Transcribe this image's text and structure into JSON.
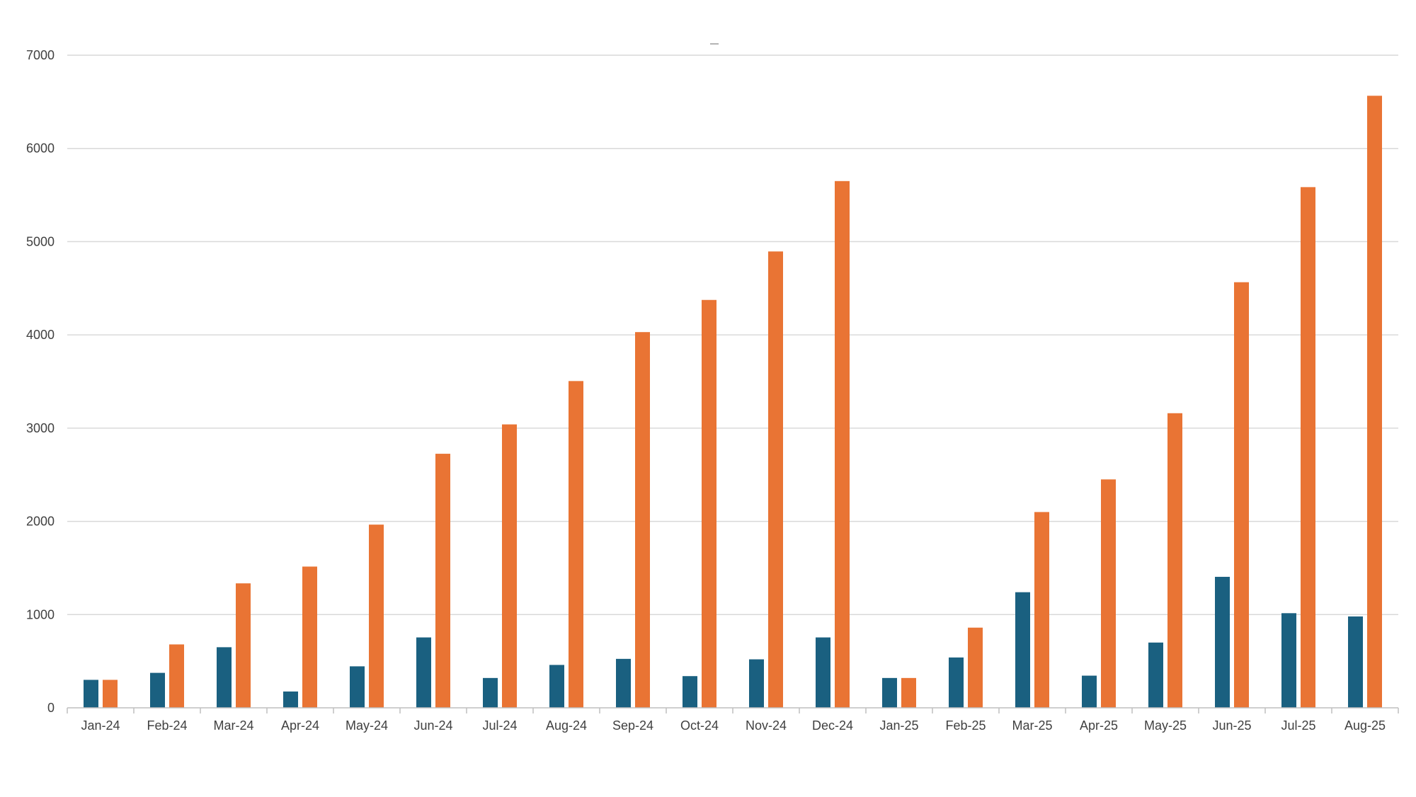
{
  "chart_data": {
    "type": "bar",
    "title": "",
    "xlabel": "",
    "ylabel": "",
    "ylim": [
      0,
      7000
    ],
    "yticks": [
      0,
      1000,
      2000,
      3000,
      4000,
      5000,
      6000,
      7000
    ],
    "grid": true,
    "legend": "none",
    "categories": [
      "Jan-24",
      "Feb-24",
      "Mar-24",
      "Apr-24",
      "May-24",
      "Jun-24",
      "Jul-24",
      "Aug-24",
      "Sep-24",
      "Oct-24",
      "Nov-24",
      "Dec-24",
      "Jan-25",
      "Feb-25",
      "Mar-25",
      "Apr-25",
      "May-25",
      "Jun-25",
      "Jul-25",
      "Aug-25"
    ],
    "series": [
      {
        "color": "#1a6080",
        "values": [
          300,
          375,
          650,
          175,
          445,
          755,
          320,
          460,
          525,
          340,
          520,
          755,
          320,
          540,
          1240,
          345,
          700,
          1405,
          1015,
          980
        ]
      },
      {
        "color": "#e97434",
        "values": [
          300,
          680,
          1335,
          1515,
          1965,
          2725,
          3040,
          3505,
          4030,
          4375,
          4895,
          5650,
          320,
          860,
          2100,
          2450,
          3160,
          4565,
          5585,
          6565
        ]
      }
    ]
  }
}
